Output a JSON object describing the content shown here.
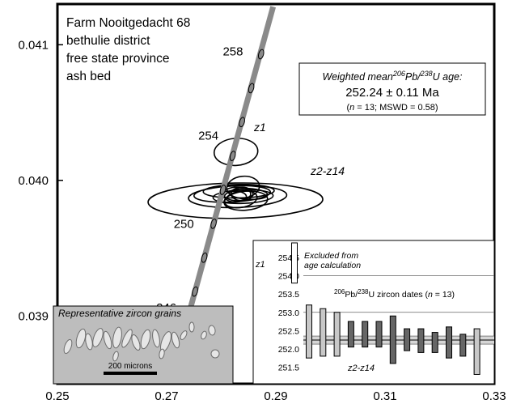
{
  "chart_data": {
    "type": "scatter",
    "subtype": "concordia-diagram",
    "xlabel": "",
    "ylabel": "",
    "xlim": [
      0.25,
      0.33
    ],
    "ylim": [
      0.0385,
      0.0413
    ],
    "x_ticks": [
      {
        "value": 0.25,
        "label": "0.25"
      },
      {
        "value": 0.27,
        "label": "0.27"
      },
      {
        "value": 0.29,
        "label": "0.29"
      },
      {
        "value": 0.31,
        "label": "0.31"
      },
      {
        "value": 0.33,
        "label": "0.33"
      }
    ],
    "y_ticks": [
      {
        "value": 0.039,
        "label": "0.039"
      },
      {
        "value": 0.04,
        "label": "0.040"
      },
      {
        "value": 0.041,
        "label": "0.041"
      }
    ],
    "sample_label": [
      "Farm Nooitgedacht 68",
      "bethulie district",
      "free state province",
      "ash bed"
    ],
    "concordia": {
      "start": {
        "x": 0.2726,
        "y": 0.0388
      },
      "end": {
        "x": 0.2895,
        "y": 0.04128
      },
      "age_labels": [
        {
          "age": "246",
          "x": 0.2718,
          "y": 0.03903
        },
        {
          "age": "250",
          "x": 0.275,
          "y": 0.03965
        },
        {
          "age": "254",
          "x": 0.2795,
          "y": 0.0403
        },
        {
          "age": "258",
          "x": 0.284,
          "y": 0.04092
        }
      ],
      "age_markers": [
        {
          "x": 0.2735,
          "y": 0.03893
        },
        {
          "x": 0.2752,
          "y": 0.03918
        },
        {
          "x": 0.2769,
          "y": 0.03943
        },
        {
          "x": 0.2786,
          "y": 0.03968
        },
        {
          "x": 0.2803,
          "y": 0.03993
        },
        {
          "x": 0.2821,
          "y": 0.04018
        },
        {
          "x": 0.2838,
          "y": 0.04043
        },
        {
          "x": 0.2855,
          "y": 0.04068
        },
        {
          "x": 0.2873,
          "y": 0.04093
        }
      ]
    },
    "ellipses": [
      {
        "cx": 0.2827,
        "cy": 0.04021,
        "rx": 0.004,
        "ry": 0.0001,
        "angle": 4
      },
      {
        "cx": 0.2826,
        "cy": 0.03985,
        "rx": 0.016,
        "ry": 0.00013,
        "angle": 1
      },
      {
        "cx": 0.283,
        "cy": 0.03988,
        "rx": 0.009,
        "ry": 8e-05,
        "angle": 2
      },
      {
        "cx": 0.282,
        "cy": 0.0399,
        "rx": 0.007,
        "ry": 6e-05,
        "angle": 3
      },
      {
        "cx": 0.2832,
        "cy": 0.03992,
        "rx": 0.0065,
        "ry": 5e-05,
        "angle": 1
      },
      {
        "cx": 0.284,
        "cy": 0.03988,
        "rx": 0.0055,
        "ry": 5e-05,
        "angle": 2
      },
      {
        "cx": 0.2845,
        "cy": 0.03985,
        "rx": 0.004,
        "ry": 7e-05,
        "angle": 5
      },
      {
        "cx": 0.2836,
        "cy": 0.03986,
        "rx": 0.003,
        "ry": 6e-05,
        "angle": 10
      },
      {
        "cx": 0.2829,
        "cy": 0.0399,
        "rx": 0.0025,
        "ry": 5e-05,
        "angle": 0
      },
      {
        "cx": 0.285,
        "cy": 0.0399,
        "rx": 0.0035,
        "ry": 4e-05,
        "angle": -3
      },
      {
        "cx": 0.284,
        "cy": 0.03995,
        "rx": 0.003,
        "ry": 8e-05,
        "angle": 6
      },
      {
        "cx": 0.2826,
        "cy": 0.03988,
        "rx": 0.002,
        "ry": 4e-05,
        "angle": 0
      },
      {
        "cx": 0.2838,
        "cy": 0.0399,
        "rx": 0.002,
        "ry": 5e-05,
        "angle": 0
      }
    ],
    "annotations": {
      "z1": "z1",
      "z2_z14": "z2-z14"
    },
    "age_box": {
      "title": "Weighted mean",
      "title_sup": "206",
      "title_mid": "Pb/",
      "title_sup2": "238",
      "title_end": "U age:",
      "value": "252.24 ± 0.11 Ma",
      "n_label": "n",
      "n_text": " = 13; MSWD = 0.58)"
    },
    "inset_bars": {
      "ylim": [
        251.2,
        254.9
      ],
      "y_ticks": [
        "254.5",
        "254.0",
        "253.5",
        "253.0",
        "252.5",
        "252.0",
        "251.5"
      ],
      "y_tick_values": [
        254.5,
        254.0,
        253.5,
        253.0,
        252.5,
        252.0,
        251.5
      ],
      "mean": 252.24,
      "mean_err": 0.11,
      "excluded_label": [
        "Excluded from",
        "age calculation"
      ],
      "z1_label": "z1",
      "z2_z14_label": "z2-z14",
      "dates_title_sup": "206",
      "dates_title_mid": "Pb/",
      "dates_title_sup2": "238",
      "dates_title_end": "U zircon dates (",
      "dates_n": "n",
      "dates_tail": " = 13)",
      "bars": [
        {
          "name": "z1",
          "low": 253.8,
          "high": 254.9,
          "color": "#ffffff"
        },
        {
          "low": 251.75,
          "high": 253.2,
          "color": "#c8c8c8"
        },
        {
          "low": 251.8,
          "high": 253.1,
          "color": "#c8c8c8"
        },
        {
          "low": 251.8,
          "high": 253.0,
          "color": "#c8c8c8"
        },
        {
          "low": 252.05,
          "high": 252.75,
          "color": "#666666"
        },
        {
          "low": 252.05,
          "high": 252.75,
          "color": "#666666"
        },
        {
          "low": 252.05,
          "high": 252.75,
          "color": "#666666"
        },
        {
          "low": 251.6,
          "high": 252.9,
          "color": "#666666"
        },
        {
          "low": 251.95,
          "high": 252.55,
          "color": "#666666"
        },
        {
          "low": 251.9,
          "high": 252.55,
          "color": "#666666"
        },
        {
          "low": 251.9,
          "high": 252.45,
          "color": "#666666"
        },
        {
          "low": 251.75,
          "high": 252.6,
          "color": "#666666"
        },
        {
          "low": 251.8,
          "high": 252.4,
          "color": "#666666"
        },
        {
          "low": 251.3,
          "high": 252.55,
          "color": "#c8c8c8"
        }
      ]
    },
    "photo_inset": {
      "title": "Representative zircon grains",
      "scale_label": "200 microns"
    }
  }
}
